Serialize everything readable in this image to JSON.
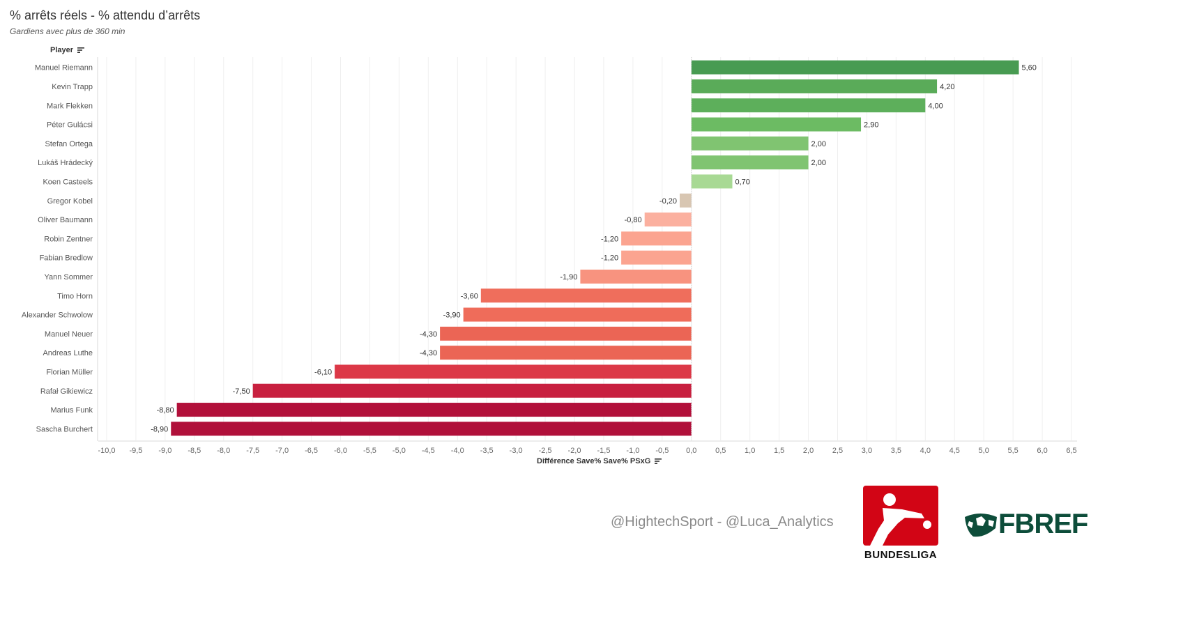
{
  "title": "% arrêts réels - % attendu d’arrêts",
  "subtitle": "Gardiens avec plus de 360 min",
  "row_header": "Player",
  "credits": "@HightechSport - @Luca_Analytics",
  "logos": {
    "bundesliga": "BUNDESLIGA",
    "fbref": "FBREF"
  },
  "chart_data": {
    "type": "bar",
    "orientation": "horizontal",
    "xlabel": "Différence Save% Save% PSxG",
    "ylabel": "Player",
    "xlim": [
      -10.0,
      6.5
    ],
    "x_ticks": [
      "-10,0",
      "-9,5",
      "-9,0",
      "-8,5",
      "-8,0",
      "-7,5",
      "-7,0",
      "-6,5",
      "-6,0",
      "-5,5",
      "-5,0",
      "-4,5",
      "-4,0",
      "-3,5",
      "-3,0",
      "-2,5",
      "-2,0",
      "-1,5",
      "-1,0",
      "-0,5",
      "0,0",
      "0,5",
      "1,0",
      "1,5",
      "2,0",
      "2,5",
      "3,0",
      "3,5",
      "4,0",
      "4,5",
      "5,0",
      "5,5",
      "6,0",
      "6,5"
    ],
    "grid": "vertical",
    "categories": [
      "Manuel Riemann",
      "Kevin Trapp",
      "Mark Flekken",
      "Péter Gulácsi",
      "Stefan Ortega",
      "Lukáš Hrádecký",
      "Koen Casteels",
      "Gregor Kobel",
      "Oliver Baumann",
      "Robin Zentner",
      "Fabian Bredlow",
      "Yann Sommer",
      "Timo Horn",
      "Alexander Schwolow",
      "Manuel Neuer",
      "Andreas Luthe",
      "Florian Müller",
      "Rafał Gikiewicz",
      "Marius Funk",
      "Sascha Burchert"
    ],
    "values": [
      5.6,
      4.2,
      4.0,
      2.9,
      2.0,
      2.0,
      0.7,
      -0.2,
      -0.8,
      -1.2,
      -1.2,
      -1.9,
      -3.6,
      -3.9,
      -4.3,
      -4.3,
      -6.1,
      -7.5,
      -8.8,
      -8.9
    ],
    "value_labels": [
      "5,60",
      "4,20",
      "4,00",
      "2,90",
      "2,00",
      "2,00",
      "0,70",
      "-0,20",
      "-0,80",
      "-1,20",
      "-1,20",
      "-1,90",
      "-3,60",
      "-3,90",
      "-4,30",
      "-4,30",
      "-6,10",
      "-7,50",
      "-8,80",
      "-8,90"
    ],
    "colors": [
      "#489b52",
      "#5aab59",
      "#5daf5b",
      "#6cbb63",
      "#80c471",
      "#80c471",
      "#a8d994",
      "#d8c6b2",
      "#fbb09f",
      "#fba490",
      "#fba490",
      "#f8937f",
      "#ef6e5c",
      "#ef6c5a",
      "#eb6555",
      "#eb6555",
      "#dc3847",
      "#c8203f",
      "#b2103a",
      "#b0103a"
    ]
  }
}
